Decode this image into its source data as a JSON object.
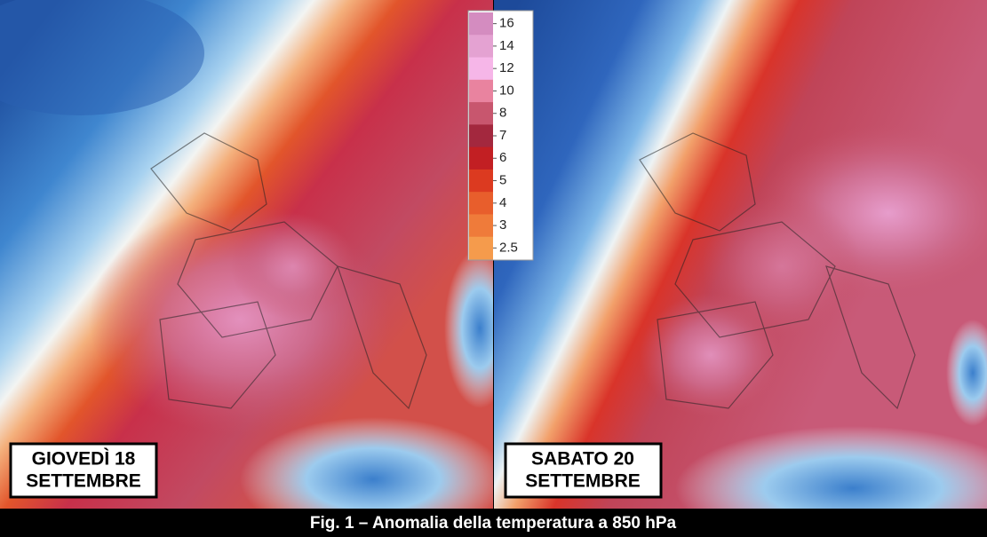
{
  "panels": [
    {
      "label_lines": [
        "GIOVEDÌ 18",
        "SETTEMBRE"
      ]
    },
    {
      "label_lines": [
        "SABATO 20",
        "SETTEMBRE"
      ]
    }
  ],
  "legend": {
    "items": [
      {
        "value": 16,
        "color": "#d48cc0"
      },
      {
        "value": 14,
        "color": "#e4a2d2"
      },
      {
        "value": 12,
        "color": "#f6b6e8"
      },
      {
        "value": 10,
        "color": "#e9839f"
      },
      {
        "value": 8,
        "color": "#c8566e"
      },
      {
        "value": 7,
        "color": "#a3283e"
      },
      {
        "value": 6,
        "color": "#c21f23"
      },
      {
        "value": 5,
        "color": "#dc3a20"
      },
      {
        "value": 4,
        "color": "#e85e2c"
      },
      {
        "value": 3,
        "color": "#ef7b3a"
      },
      {
        "value": 2.5,
        "color": "#f59b4c"
      }
    ]
  },
  "caption": "Fig. 1 – Anomalia della temperatura a 850 hPa"
}
